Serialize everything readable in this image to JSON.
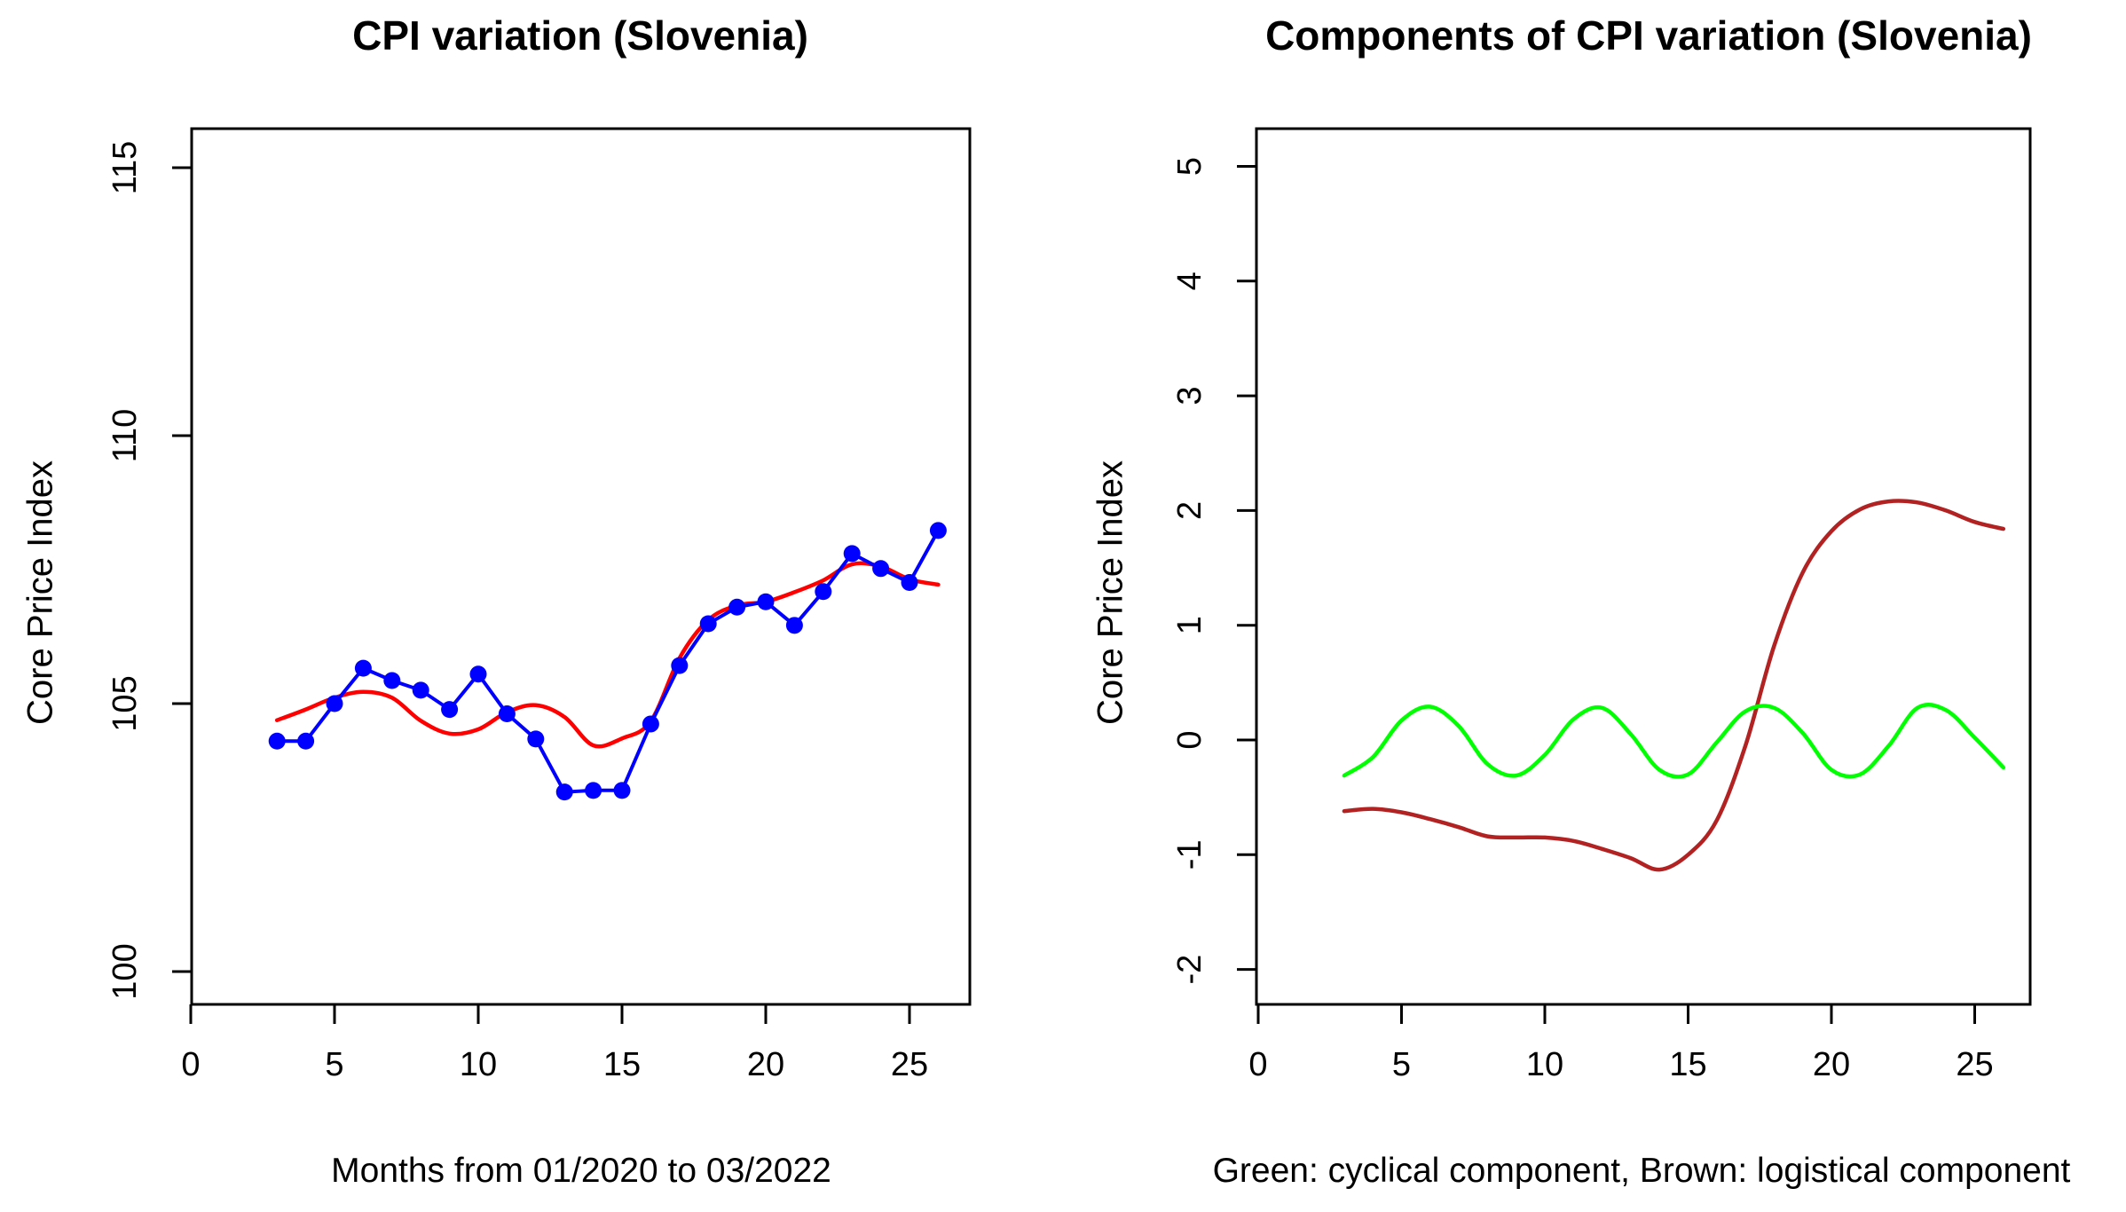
{
  "figure": {
    "background": "#ffffff",
    "axis_color": "#000000",
    "text_color": "#000000"
  },
  "chart_data": [
    {
      "type": "line",
      "title": "CPI variation (Slovenia)",
      "xlabel": "Months from 01/2020 to 03/2022",
      "ylabel": "Core Price Index",
      "xlim": [
        0,
        27
      ],
      "ylim": [
        99.5,
        115.5
      ],
      "x_ticks": [
        0,
        5,
        10,
        15,
        20,
        25
      ],
      "y_ticks": [
        100,
        105,
        110,
        115
      ],
      "grid": false,
      "legend": "none",
      "x": [
        3,
        4,
        5,
        6,
        7,
        8,
        9,
        10,
        11,
        12,
        13,
        14,
        15,
        16,
        17,
        18,
        19,
        20,
        21,
        22,
        23,
        24,
        25,
        26
      ],
      "series": [
        {
          "id": "cpi-observed",
          "color": "#0000ff",
          "marker": true,
          "smooth": false,
          "values": [
            104.3,
            104.3,
            105.0,
            105.66,
            105.43,
            105.25,
            104.89,
            105.55,
            104.81,
            104.34,
            103.35,
            103.38,
            103.38,
            104.62,
            105.71,
            106.49,
            106.8,
            106.9,
            106.46,
            107.09,
            107.8,
            107.52,
            107.26,
            108.23
          ]
        },
        {
          "id": "cpi-smoothed-trend",
          "color": "#ff0000",
          "marker": false,
          "smooth": true,
          "values": [
            104.69,
            104.89,
            105.11,
            105.22,
            105.11,
            104.68,
            104.44,
            104.52,
            104.84,
            104.97,
            104.75,
            104.22,
            104.35,
            104.67,
            105.85,
            106.56,
            106.83,
            106.9,
            107.08,
            107.3,
            107.6,
            107.56,
            107.32,
            107.22
          ]
        }
      ]
    },
    {
      "type": "line",
      "title": "Components of CPI variation (Slovenia)",
      "caption": "Green: cyclical component, Brown: logistical component",
      "ylabel": "Core Price Index",
      "xlim": [
        0,
        27
      ],
      "ylim": [
        -2.5,
        5.3
      ],
      "x_ticks": [
        0,
        5,
        10,
        15,
        20,
        25
      ],
      "y_ticks": [
        -2,
        -1,
        0,
        1,
        2,
        3,
        4,
        5
      ],
      "grid": false,
      "legend": "caption",
      "x": [
        3,
        4,
        5,
        6,
        7,
        8,
        9,
        10,
        11,
        12,
        13,
        14,
        15,
        16,
        17,
        18,
        19,
        20,
        21,
        22,
        23,
        24,
        25,
        26
      ],
      "series": [
        {
          "id": "cyclical-component",
          "label": "cyclical component",
          "color": "#00ff00",
          "marker": false,
          "smooth": true,
          "values": [
            -0.31,
            -0.15,
            0.17,
            0.29,
            0.12,
            -0.21,
            -0.31,
            -0.13,
            0.18,
            0.28,
            0.05,
            -0.26,
            -0.3,
            -0.02,
            0.25,
            0.28,
            0.06,
            -0.26,
            -0.3,
            -0.05,
            0.28,
            0.26,
            0.02,
            -0.24
          ]
        },
        {
          "id": "logistical-component",
          "label": "logistical component",
          "color": "#b22222",
          "marker": false,
          "smooth": true,
          "values": [
            -0.62,
            -0.6,
            -0.63,
            -0.69,
            -0.76,
            -0.84,
            -0.85,
            -0.85,
            -0.88,
            -0.95,
            -1.03,
            -1.13,
            -1.0,
            -0.7,
            -0.05,
            0.82,
            1.46,
            1.82,
            2.01,
            2.08,
            2.07,
            2.0,
            1.9,
            1.84
          ]
        }
      ]
    }
  ]
}
